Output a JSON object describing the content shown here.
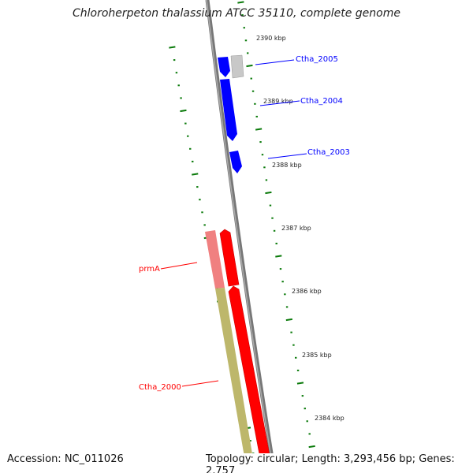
{
  "title": "Chloroherpeton thalassium ATCC 35110, complete genome",
  "footer": {
    "accession": "Accession: NC_011026",
    "summary": "Topology: circular; Length: 3,293,456 bp; Genes: 2,757"
  },
  "ruler_labels": [
    "2390 kbp",
    "2389 kbp",
    "2388 kbp",
    "2387 kbp",
    "2386 kbp",
    "2385 kbp",
    "2384 kbp"
  ],
  "features": [
    {
      "label": "Ctha_2005",
      "strand": "reverse",
      "color": "#0000ff"
    },
    {
      "label": "Ctha_2004",
      "strand": "reverse",
      "color": "#0000ff"
    },
    {
      "label": "Ctha_2003",
      "strand": "reverse",
      "color": "#0000ff"
    },
    {
      "label": "prmA",
      "strand": "forward",
      "color": "#ff0000"
    },
    {
      "label": "Ctha_2000",
      "strand": "forward",
      "color": "#ff0000"
    }
  ],
  "colors": {
    "backbone": "#808080",
    "ticks": "#0a7a0a",
    "blue": "#0000ff",
    "red": "#ff0000",
    "olive": "#bdb76b",
    "pink": "#f08080",
    "gray_feature": "#c0c0c0"
  }
}
